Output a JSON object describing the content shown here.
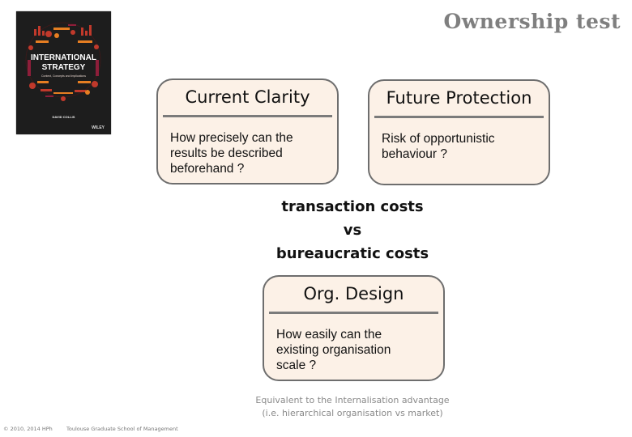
{
  "slide": {
    "title": "Ownership test"
  },
  "book": {
    "title_line1": "INTERNATIONAL",
    "title_line2": "STRATEGY",
    "subtitle": "Context, Concepts and Implications",
    "author": "DAVID COLLIS",
    "publisher": "WILEY"
  },
  "cards": {
    "clarity": {
      "heading": "Current Clarity",
      "body": "How precisely can the\nresults be described\nbeforehand ?"
    },
    "protection": {
      "heading": "Future Protection",
      "body": "Risk of opportunistic\nbehaviour  ?"
    },
    "design": {
      "heading": "Org. Design",
      "body": "How easily can the\nexisting organisation\nscale  ?"
    }
  },
  "comparison": {
    "line1": "transaction costs",
    "line2": "vs",
    "line3": "bureaucratic costs"
  },
  "note": {
    "line1": "Equivalent to the Internalisation advantage",
    "line2": "(i.e. hierarchical organisation vs market)"
  },
  "footer": {
    "copyright": "© 2010, 2014 HPh",
    "school": "Toulouse Graduate School of Management"
  }
}
